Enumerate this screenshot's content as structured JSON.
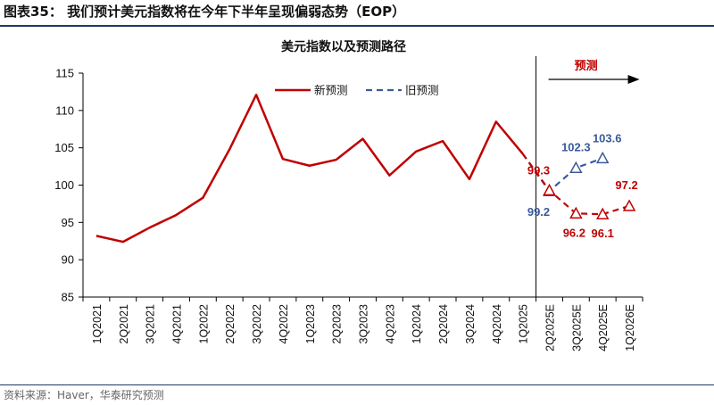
{
  "figure_title": "图表35： 我们预计美元指数将在今年下半年呈现偏弱态势（EOP）",
  "source": "资料来源：Haver，华泰研究预测",
  "forecast_label": "预测",
  "colors": {
    "new": "#c00000",
    "old": "#3a5a9a",
    "frame": "#1f3864"
  },
  "chart_data": {
    "type": "line",
    "title": "美元指数以及预测路径",
    "xlabel": "",
    "ylabel": "",
    "ylim": [
      85,
      115
    ],
    "yticks": [
      85,
      90,
      95,
      100,
      105,
      110,
      115
    ],
    "grid": false,
    "legend_position": "top",
    "categories": [
      "1Q2021",
      "2Q2021",
      "3Q2021",
      "4Q2021",
      "1Q2022",
      "2Q2022",
      "3Q2022",
      "4Q2022",
      "1Q2023",
      "2Q2023",
      "3Q2023",
      "4Q2023",
      "1Q2024",
      "2Q2024",
      "3Q2024",
      "4Q2024",
      "1Q2025",
      "2Q2025E",
      "3Q2025E",
      "4Q2025E",
      "1Q2026E"
    ],
    "forecast_divider_after": "1Q2025",
    "series": [
      {
        "name": "新预测",
        "color": "#c00000",
        "actual_values": [
          93.2,
          92.4,
          94.3,
          96.0,
          98.3,
          104.8,
          112.1,
          103.5,
          102.6,
          103.4,
          106.2,
          101.3,
          104.5,
          105.9,
          100.8,
          108.5,
          104.2,
          null,
          null,
          null,
          null
        ],
        "forecast_values": [
          null,
          null,
          null,
          null,
          null,
          null,
          null,
          null,
          null,
          null,
          null,
          null,
          null,
          null,
          null,
          null,
          104.2,
          99.3,
          96.2,
          96.1,
          97.2
        ],
        "forecast_labels": [
          "99.3",
          "96.2",
          "96.1",
          "97.2"
        ]
      },
      {
        "name": "旧预测",
        "color": "#3a5a9a",
        "forecast_values": [
          null,
          null,
          null,
          null,
          null,
          null,
          null,
          null,
          null,
          null,
          null,
          null,
          null,
          null,
          null,
          null,
          104.2,
          99.2,
          102.3,
          103.6,
          null
        ],
        "forecast_labels": [
          "99.2",
          "102.3",
          "103.6"
        ]
      }
    ]
  }
}
